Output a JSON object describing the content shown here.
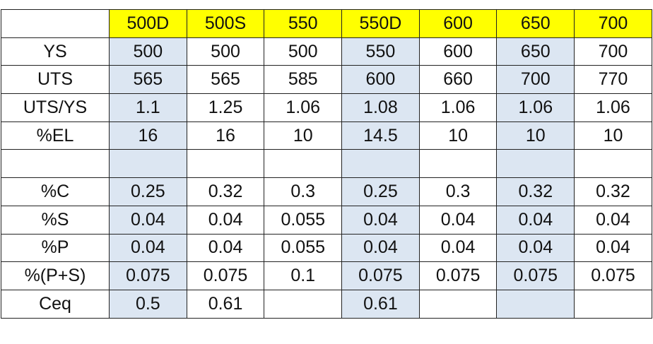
{
  "grades": [
    "500D",
    "500S",
    "550",
    "550D",
    "600",
    "650",
    "700"
  ],
  "highlighted_grades": [
    "500D",
    "550D",
    "650"
  ],
  "colors": {
    "header_fill": "#ffff00",
    "highlight_fill": "#dce6f2",
    "border": "#222222"
  },
  "rows": [
    {
      "label": "YS",
      "values": [
        "500",
        "500",
        "500",
        "550",
        "600",
        "650",
        "700"
      ]
    },
    {
      "label": "UTS",
      "values": [
        "565",
        "565",
        "585",
        "600",
        "660",
        "700",
        "770"
      ]
    },
    {
      "label": "UTS/YS",
      "values": [
        "1.1",
        "1.25",
        "1.06",
        "1.08",
        "1.06",
        "1.06",
        "1.06"
      ]
    },
    {
      "label": "%EL",
      "values": [
        "16",
        "16",
        "10",
        "14.5",
        "10",
        "10",
        "10"
      ]
    },
    {
      "label": "",
      "values": [
        "",
        "",
        "",
        "",
        "",
        "",
        ""
      ]
    },
    {
      "label": "%C",
      "values": [
        "0.25",
        "0.32",
        "0.3",
        "0.25",
        "0.3",
        "0.32",
        "0.32"
      ]
    },
    {
      "label": "%S",
      "values": [
        "0.04",
        "0.04",
        "0.055",
        "0.04",
        "0.04",
        "0.04",
        "0.04"
      ]
    },
    {
      "label": "%P",
      "values": [
        "0.04",
        "0.04",
        "0.055",
        "0.04",
        "0.04",
        "0.04",
        "0.04"
      ]
    },
    {
      "label": "%(P+S)",
      "values": [
        "0.075",
        "0.075",
        "0.1",
        "0.075",
        "0.075",
        "0.075",
        "0.075"
      ]
    },
    {
      "label": "Ceq",
      "values": [
        "0.5",
        "0.61",
        "",
        "0.61",
        "",
        "",
        ""
      ]
    }
  ]
}
